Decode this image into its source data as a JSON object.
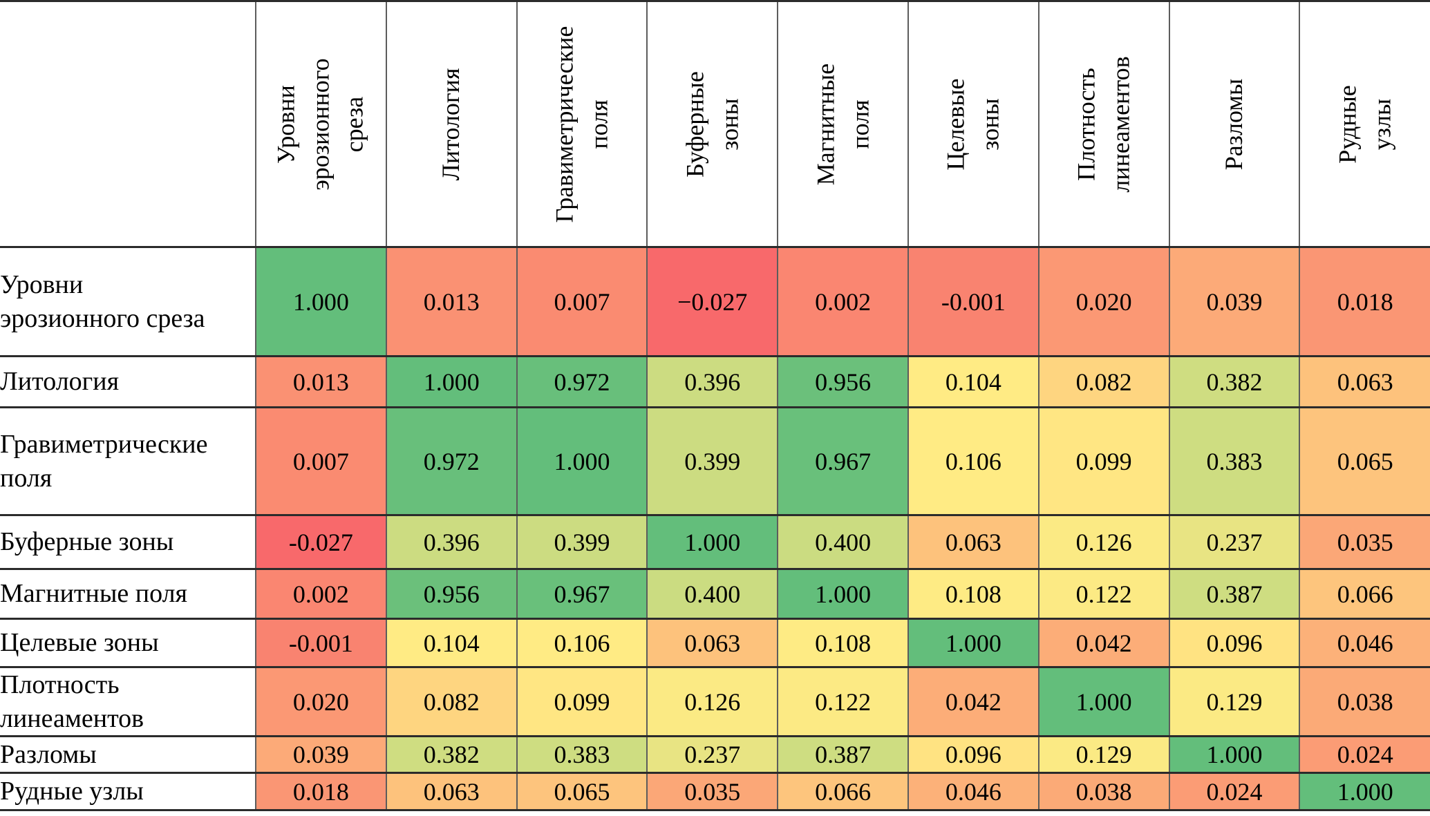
{
  "chart_data": {
    "type": "heatmap",
    "description": "Correlation matrix table with red-yellow-green color scale",
    "variables": [
      "Уровни эрозионного среза",
      "Литология",
      "Гравиметрические поля",
      "Буферные зоны",
      "Магнитные поля",
      "Целевые зоны",
      "Плотность линеаментов",
      "Разломы",
      "Рудные узлы"
    ],
    "column_headers": [
      "Уровни\nэрозионного\nсреза",
      "Литология",
      "Гравиметрические\nполя",
      "Буферные\nзоны",
      "Магнитные\nполя",
      "Целевые\nзоны",
      "Плотность\nлинеаментов",
      "Разломы",
      "Рудные\nузлы"
    ],
    "rows": [
      {
        "label": "Уровни\nэрозионного среза",
        "values": [
          "1.000",
          "0.013",
          "0.007",
          "−0.027",
          "0.002",
          "-0.001",
          "0.020",
          "0.039",
          "0.018"
        ]
      },
      {
        "label": "Литология",
        "values": [
          "0.013",
          "1.000",
          "0.972",
          "0.396",
          "0.956",
          "0.104",
          "0.082",
          "0.382",
          "0.063"
        ]
      },
      {
        "label": "Гравиметрические\nполя",
        "values": [
          "0.007",
          "0.972",
          "1.000",
          "0.399",
          "0.967",
          "0.106",
          "0.099",
          "0.383",
          "0.065"
        ]
      },
      {
        "label": "Буферные зоны",
        "values": [
          "-0.027",
          "0.396",
          "0.399",
          "1.000",
          "0.400",
          "0.063",
          "0.126",
          "0.237",
          "0.035"
        ]
      },
      {
        "label": "Магнитные поля",
        "values": [
          "0.002",
          "0.956",
          "0.967",
          "0.400",
          "1.000",
          "0.108",
          "0.122",
          "0.387",
          "0.066"
        ]
      },
      {
        "label": "Целевые зоны",
        "values": [
          "-0.001",
          "0.104",
          "0.106",
          "0.063",
          "0.108",
          "1.000",
          "0.042",
          "0.096",
          "0.046"
        ]
      },
      {
        "label": "Плотность\nлинеаментов",
        "values": [
          "0.020",
          "0.082",
          "0.099",
          "0.126",
          "0.122",
          "0.042",
          "1.000",
          "0.129",
          "0.038"
        ]
      },
      {
        "label": "Разломы",
        "values": [
          "0.039",
          "0.382",
          "0.383",
          "0.237",
          "0.387",
          "0.096",
          "0.129",
          "1.000",
          "0.024"
        ]
      },
      {
        "label": "Рудные узлы",
        "values": [
          "0.018",
          "0.063",
          "0.065",
          "0.035",
          "0.066",
          "0.046",
          "0.038",
          "0.024",
          "1.000"
        ]
      }
    ],
    "colorscale": {
      "min_value": -0.027,
      "min_color": "#F8696B",
      "mid_value": 0.104,
      "mid_color": "#FFEB84",
      "max_value": 1.0,
      "max_color": "#63BE7B"
    }
  }
}
